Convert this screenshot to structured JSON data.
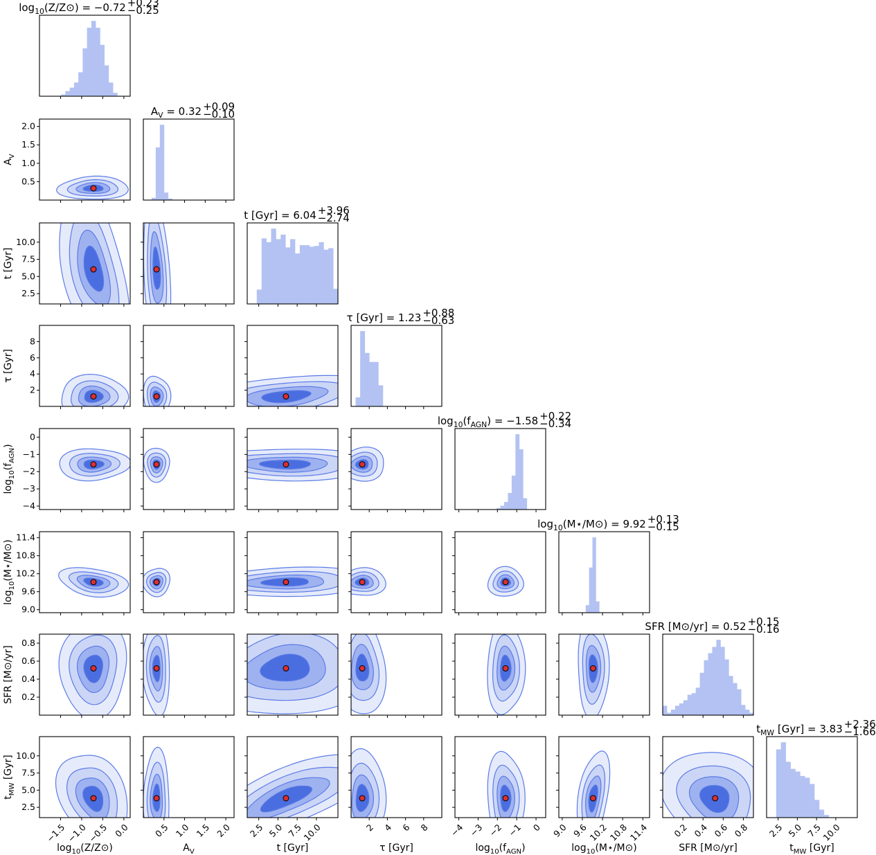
{
  "colors": {
    "hist_fill": "#b3c2f2",
    "contour_fill_outer": "#e6ebfb",
    "contour_fill_2": "#cbd5f6",
    "contour_fill_3": "#9fb2f0",
    "contour_fill_inner": "#4a6ee0",
    "contour_line": "#5b7be6",
    "marker_fill": "#d93030",
    "marker_edge": "#000000"
  },
  "chart_data": {
    "type": "corner",
    "params": [
      {
        "id": "logZ",
        "axis_label": "log10(Z/Z⊙)",
        "title": "log10(Z/Z⊙) = −0.72 +0.23 −0.25",
        "median": -0.72,
        "err_plus": 0.23,
        "err_minus": 0.25,
        "range": [
          -2.0,
          0.15
        ],
        "ticks": [
          -1.5,
          -1.0,
          -0.5,
          0.0
        ],
        "tick_labels": [
          "−1.5",
          "−1.0",
          "−0.5",
          "0.0"
        ]
      },
      {
        "id": "Av",
        "axis_label": "A_V",
        "title": "A_V = 0.32 +0.09 −0.10",
        "median": 0.32,
        "err_plus": 0.09,
        "err_minus": 0.1,
        "range": [
          0.0,
          2.2
        ],
        "ticks": [
          0.5,
          1.0,
          1.5,
          2.0
        ],
        "tick_labels": [
          "0.5",
          "1.0",
          "1.5",
          "2.0"
        ]
      },
      {
        "id": "t",
        "axis_label": "t [Gyr]",
        "title": "t [Gyr] = 6.04 +3.96 −2.74",
        "median": 6.04,
        "err_plus": 3.96,
        "err_minus": 2.74,
        "range": [
          1.0,
          12.8
        ],
        "ticks": [
          2.5,
          5.0,
          7.5,
          10.0
        ],
        "tick_labels": [
          "2.5",
          "5.0",
          "7.5",
          "10.0"
        ]
      },
      {
        "id": "tau",
        "axis_label": "τ [Gyr]",
        "title": "τ [Gyr] = 1.23 +0.88 −0.63",
        "median": 1.23,
        "err_plus": 0.88,
        "err_minus": 0.63,
        "range": [
          0.0,
          10.0
        ],
        "ticks": [
          2,
          4,
          6,
          8
        ],
        "tick_labels": [
          "2",
          "4",
          "6",
          "8"
        ]
      },
      {
        "id": "logfAGN",
        "axis_label": "log10(f_AGN)",
        "title": "log10(f_AGN) = −1.58 +0.22 −0.34",
        "median": -1.58,
        "err_plus": 0.22,
        "err_minus": 0.34,
        "range": [
          -4.2,
          0.5
        ],
        "ticks": [
          -4,
          -3,
          -2,
          -1,
          0
        ],
        "tick_labels": [
          "−4",
          "−3",
          "−2",
          "−1",
          "0"
        ]
      },
      {
        "id": "logM",
        "axis_label": "log10(M⋆/M⊙)",
        "title": "log10(M⋆/M⊙) = 9.92 +0.13 −0.15",
        "median": 9.92,
        "err_plus": 0.13,
        "err_minus": 0.15,
        "range": [
          8.9,
          11.6
        ],
        "ticks": [
          9.0,
          9.6,
          10.2,
          10.8,
          11.4
        ],
        "tick_labels": [
          "9.0",
          "9.6",
          "10.2",
          "10.8",
          "11.4"
        ]
      },
      {
        "id": "SFR",
        "axis_label": "SFR [M⊙/yr]",
        "title": "SFR [M⊙/yr] = 0.52 +0.15 −0.16",
        "median": 0.52,
        "err_plus": 0.15,
        "err_minus": 0.16,
        "range": [
          0.0,
          0.9
        ],
        "ticks": [
          0.2,
          0.4,
          0.6,
          0.8
        ],
        "tick_labels": [
          "0.2",
          "0.4",
          "0.6",
          "0.8"
        ]
      },
      {
        "id": "tMW",
        "axis_label": "t_MW [Gyr]",
        "title": "t_MW [Gyr] = 3.83 +2.36 −1.66",
        "median": 3.83,
        "err_plus": 2.36,
        "err_minus": 1.66,
        "range": [
          1.0,
          12.8
        ],
        "ticks": [
          2.5,
          5.0,
          7.5,
          10.0
        ],
        "tick_labels": [
          "2.5",
          "5.0",
          "7.5",
          "10.0"
        ]
      }
    ],
    "histograms": {
      "logZ": {
        "edges_range": [
          -2.0,
          0.15
        ],
        "counts": [
          0,
          0,
          0,
          0,
          0,
          1,
          3,
          5,
          8,
          14,
          28,
          40,
          44,
          40,
          30,
          18,
          8,
          2,
          0,
          0,
          0
        ]
      },
      "Av": {
        "edges_range": [
          0.0,
          2.2
        ],
        "counts": [
          0,
          0,
          3,
          70,
          100,
          10,
          2,
          0,
          0,
          0,
          0,
          0,
          0,
          0,
          0,
          0,
          0,
          0,
          0,
          0,
          0,
          0
        ]
      },
      "t": {
        "edges_range": [
          1.0,
          12.8
        ],
        "counts": [
          0,
          0,
          19,
          87,
          82,
          100,
          86,
          92,
          75,
          86,
          67,
          78,
          78,
          76,
          77,
          82,
          72,
          74,
          20
        ]
      },
      "tau": {
        "edges_range": [
          0.0,
          10.0
        ],
        "counts": [
          0,
          12,
          100,
          71,
          59,
          59,
          28,
          0,
          0,
          0,
          0,
          0,
          0,
          0,
          0,
          0,
          0,
          0,
          0,
          0
        ]
      },
      "logfAGN": {
        "edges_range": [
          -4.2,
          0.5
        ],
        "counts": [
          0,
          0,
          0,
          0,
          0,
          0,
          0,
          0,
          0,
          0,
          0,
          2,
          5,
          10,
          22,
          45,
          100,
          80,
          15,
          0,
          0,
          0,
          0,
          0
        ]
      },
      "logM": {
        "edges_range": [
          8.9,
          11.6
        ],
        "counts": [
          0,
          0,
          0,
          0,
          0,
          0,
          0,
          0,
          10,
          60,
          100,
          15,
          0,
          0,
          0,
          0,
          0,
          0,
          0,
          0,
          0,
          0,
          0,
          0,
          0,
          0,
          0
        ]
      },
      "SFR": {
        "edges_range": [
          0.0,
          0.9
        ],
        "counts": [
          12,
          3,
          7,
          12,
          15,
          19,
          26,
          28,
          35,
          54,
          70,
          79,
          87,
          96,
          87,
          71,
          50,
          41,
          33,
          13,
          7,
          3
        ]
      },
      "tMW": {
        "edges_range": [
          1.0,
          12.8
        ],
        "counts": [
          0,
          0,
          77,
          85,
          63,
          55,
          52,
          47,
          45,
          38,
          20,
          9,
          3,
          0,
          0,
          0,
          0,
          0,
          0
        ]
      }
    },
    "correlations": [
      [
        null,
        null,
        null,
        null,
        null,
        null,
        null,
        null
      ],
      [
        0.0,
        null,
        null,
        null,
        null,
        null,
        null,
        null
      ],
      [
        -0.4,
        -0.35,
        null,
        null,
        null,
        null,
        null,
        null
      ],
      [
        0.0,
        0.0,
        0.3,
        null,
        null,
        null,
        null,
        null
      ],
      [
        0.0,
        0.0,
        0.0,
        0.0,
        null,
        null,
        null,
        null
      ],
      [
        -0.25,
        0.0,
        0.2,
        0.0,
        0.0,
        null,
        null,
        null
      ],
      [
        0.0,
        0.0,
        0.05,
        0.0,
        0.0,
        0.0,
        null,
        null
      ],
      [
        -0.3,
        0.0,
        0.75,
        0.0,
        0.0,
        0.35,
        -0.1,
        null
      ]
    ]
  }
}
